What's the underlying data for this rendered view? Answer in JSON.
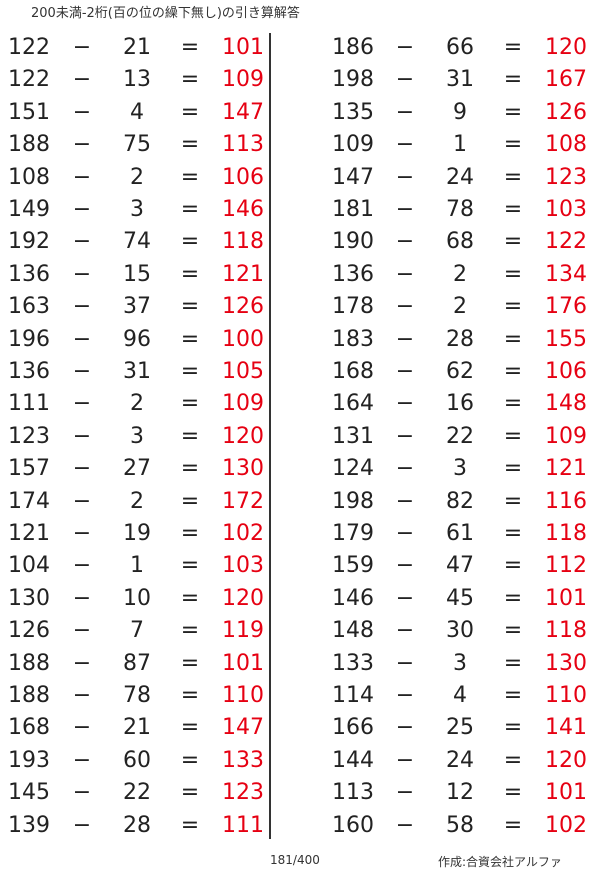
{
  "title": "200未満-2桁(百の位の繰下無し)の引き算解答",
  "operator": "−",
  "equals": "=",
  "colors": {
    "answer": "#e60012",
    "text": "#222222"
  },
  "left_column": [
    [
      "122",
      "21",
      "101"
    ],
    [
      "122",
      "13",
      "109"
    ],
    [
      "151",
      "4",
      "147"
    ],
    [
      "188",
      "75",
      "113"
    ],
    [
      "108",
      "2",
      "106"
    ],
    [
      "149",
      "3",
      "146"
    ],
    [
      "192",
      "74",
      "118"
    ],
    [
      "136",
      "15",
      "121"
    ],
    [
      "163",
      "37",
      "126"
    ],
    [
      "196",
      "96",
      "100"
    ],
    [
      "136",
      "31",
      "105"
    ],
    [
      "111",
      "2",
      "109"
    ],
    [
      "123",
      "3",
      "120"
    ],
    [
      "157",
      "27",
      "130"
    ],
    [
      "174",
      "2",
      "172"
    ],
    [
      "121",
      "19",
      "102"
    ],
    [
      "104",
      "1",
      "103"
    ],
    [
      "130",
      "10",
      "120"
    ],
    [
      "126",
      "7",
      "119"
    ],
    [
      "188",
      "87",
      "101"
    ],
    [
      "188",
      "78",
      "110"
    ],
    [
      "168",
      "21",
      "147"
    ],
    [
      "193",
      "60",
      "133"
    ],
    [
      "145",
      "22",
      "123"
    ],
    [
      "139",
      "28",
      "111"
    ]
  ],
  "right_column": [
    [
      "186",
      "66",
      "120"
    ],
    [
      "198",
      "31",
      "167"
    ],
    [
      "135",
      "9",
      "126"
    ],
    [
      "109",
      "1",
      "108"
    ],
    [
      "147",
      "24",
      "123"
    ],
    [
      "181",
      "78",
      "103"
    ],
    [
      "190",
      "68",
      "122"
    ],
    [
      "136",
      "2",
      "134"
    ],
    [
      "178",
      "2",
      "176"
    ],
    [
      "183",
      "28",
      "155"
    ],
    [
      "168",
      "62",
      "106"
    ],
    [
      "164",
      "16",
      "148"
    ],
    [
      "131",
      "22",
      "109"
    ],
    [
      "124",
      "3",
      "121"
    ],
    [
      "198",
      "82",
      "116"
    ],
    [
      "179",
      "61",
      "118"
    ],
    [
      "159",
      "47",
      "112"
    ],
    [
      "146",
      "45",
      "101"
    ],
    [
      "148",
      "30",
      "118"
    ],
    [
      "133",
      "3",
      "130"
    ],
    [
      "114",
      "4",
      "110"
    ],
    [
      "166",
      "25",
      "141"
    ],
    [
      "144",
      "24",
      "120"
    ],
    [
      "113",
      "12",
      "101"
    ],
    [
      "160",
      "58",
      "102"
    ]
  ],
  "footer": {
    "page": "181/400",
    "credit": "作成:合資会社アルファ"
  }
}
